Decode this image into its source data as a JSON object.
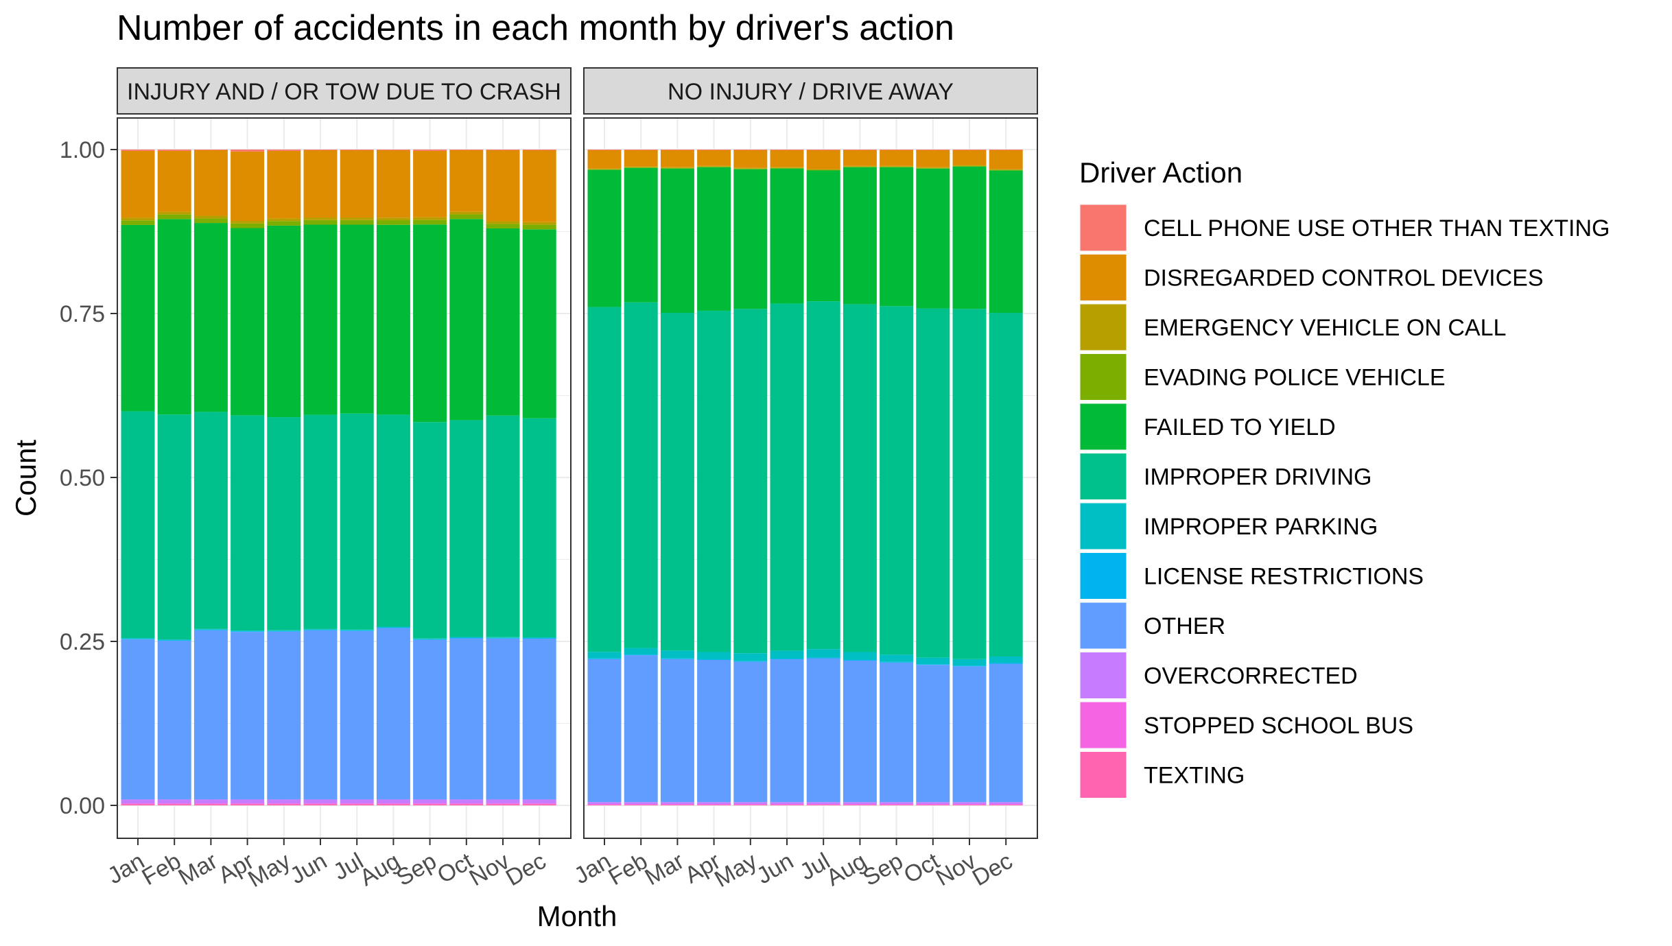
{
  "chart_data": {
    "type": "bar",
    "stacked": "fill",
    "title": "Number of accidents in each month by driver's action",
    "xlabel": "Month",
    "ylabel": "Count",
    "ylim": [
      0,
      1
    ],
    "yticks": [
      "0.00",
      "0.25",
      "0.50",
      "0.75",
      "1.00"
    ],
    "ytick_values": [
      0,
      0.25,
      0.5,
      0.75,
      1.0
    ],
    "categories": [
      "Jan",
      "Feb",
      "Mar",
      "Apr",
      "May",
      "Jun",
      "Jul",
      "Aug",
      "Sep",
      "Oct",
      "Nov",
      "Dec"
    ],
    "grid": true,
    "legend_position": "right",
    "legend": {
      "title": "Driver Action",
      "entries": [
        {
          "name": "CELL PHONE USE OTHER THAN TEXTING",
          "color": "#F8766D"
        },
        {
          "name": "DISREGARDED CONTROL DEVICES",
          "color": "#DE8C00"
        },
        {
          "name": "EMERGENCY VEHICLE ON CALL",
          "color": "#B79F00"
        },
        {
          "name": "EVADING POLICE VEHICLE",
          "color": "#7CAE00"
        },
        {
          "name": "FAILED TO YIELD",
          "color": "#00BA38"
        },
        {
          "name": "IMPROPER DRIVING",
          "color": "#00C08B"
        },
        {
          "name": "IMPROPER PARKING",
          "color": "#00BFC4"
        },
        {
          "name": "LICENSE RESTRICTIONS",
          "color": "#00B4F0"
        },
        {
          "name": "OTHER",
          "color": "#619CFF"
        },
        {
          "name": "OVERCORRECTED",
          "color": "#C77CFF"
        },
        {
          "name": "STOPPED SCHOOL BUS",
          "color": "#F564E3"
        },
        {
          "name": "TEXTING",
          "color": "#FF64B0"
        }
      ]
    },
    "panels": [
      {
        "strip": "INJURY AND / OR TOW DUE TO CRASH",
        "series": [
          {
            "name": "TEXTING",
            "values": [
              0.002,
              0.002,
              0.002,
              0.002,
              0.002,
              0.002,
              0.002,
              0.002,
              0.002,
              0.002,
              0.002,
              0.002
            ]
          },
          {
            "name": "STOPPED SCHOOL BUS",
            "values": [
              0.001,
              0.001,
              0.001,
              0.001,
              0.001,
              0.001,
              0.001,
              0.001,
              0.001,
              0.001,
              0.001,
              0.001
            ]
          },
          {
            "name": "OVERCORRECTED",
            "values": [
              0.006,
              0.006,
              0.006,
              0.006,
              0.006,
              0.006,
              0.006,
              0.006,
              0.006,
              0.006,
              0.006,
              0.006
            ]
          },
          {
            "name": "OTHER",
            "values": [
              0.244,
              0.242,
              0.258,
              0.256,
              0.256,
              0.259,
              0.258,
              0.262,
              0.245,
              0.246,
              0.247,
              0.246
            ]
          },
          {
            "name": "LICENSE RESTRICTIONS",
            "values": [
              0.001,
              0.001,
              0.001,
              0.001,
              0.001,
              0.001,
              0.001,
              0.001,
              0.001,
              0.001,
              0.001,
              0.001
            ]
          },
          {
            "name": "IMPROPER PARKING",
            "values": [
              0.001,
              0.001,
              0.001,
              0.001,
              0.001,
              0.001,
              0.001,
              0.001,
              0.001,
              0.001,
              0.001,
              0.001
            ]
          },
          {
            "name": "IMPROPER DRIVING",
            "values": [
              0.346,
              0.343,
              0.331,
              0.329,
              0.325,
              0.328,
              0.331,
              0.324,
              0.332,
              0.331,
              0.34,
              0.335
            ]
          },
          {
            "name": "FAILED TO YIELD",
            "values": [
              0.284,
              0.298,
              0.288,
              0.286,
              0.292,
              0.291,
              0.289,
              0.29,
              0.303,
              0.307,
              0.287,
              0.289
            ]
          },
          {
            "name": "EVADING POLICE VEHICLE",
            "values": [
              0.007,
              0.007,
              0.007,
              0.007,
              0.007,
              0.007,
              0.007,
              0.007,
              0.007,
              0.007,
              0.007,
              0.007
            ]
          },
          {
            "name": "EMERGENCY VEHICLE ON CALL",
            "values": [
              0.004,
              0.004,
              0.004,
              0.004,
              0.004,
              0.004,
              0.004,
              0.004,
              0.004,
              0.004,
              0.004,
              0.004
            ]
          },
          {
            "name": "DISREGARDED CONTROL DEVICES",
            "values": [
              0.102,
              0.093,
              0.1,
              0.106,
              0.103,
              0.103,
              0.103,
              0.103,
              0.102,
              0.094,
              0.109,
              0.11
            ]
          },
          {
            "name": "CELL PHONE USE OTHER THAN TEXTING",
            "values": [
              0.002,
              0.002,
              0.001,
              0.003,
              0.002,
              0.001,
              0.001,
              0.001,
              0.002,
              0.001,
              0.001,
              0.001
            ]
          }
        ]
      },
      {
        "strip": "NO INJURY / DRIVE AWAY",
        "series": [
          {
            "name": "TEXTING",
            "values": [
              0.001,
              0.001,
              0.001,
              0.001,
              0.001,
              0.001,
              0.001,
              0.001,
              0.001,
              0.001,
              0.001,
              0.001
            ]
          },
          {
            "name": "STOPPED SCHOOL BUS",
            "values": [
              0.001,
              0.001,
              0.001,
              0.001,
              0.001,
              0.001,
              0.001,
              0.001,
              0.001,
              0.001,
              0.001,
              0.001
            ]
          },
          {
            "name": "OVERCORRECTED",
            "values": [
              0.003,
              0.003,
              0.003,
              0.003,
              0.003,
              0.003,
              0.003,
              0.003,
              0.003,
              0.003,
              0.003,
              0.003
            ]
          },
          {
            "name": "OTHER",
            "values": [
              0.218,
              0.224,
              0.218,
              0.217,
              0.214,
              0.218,
              0.22,
              0.216,
              0.213,
              0.209,
              0.207,
              0.211
            ]
          },
          {
            "name": "LICENSE RESTRICTIONS",
            "values": [
              0.001,
              0.001,
              0.001,
              0.001,
              0.001,
              0.001,
              0.001,
              0.001,
              0.001,
              0.001,
              0.001,
              0.001
            ]
          },
          {
            "name": "IMPROPER PARKING",
            "values": [
              0.01,
              0.01,
              0.012,
              0.011,
              0.012,
              0.012,
              0.013,
              0.012,
              0.011,
              0.01,
              0.01,
              0.01
            ]
          },
          {
            "name": "IMPROPER DRIVING",
            "values": [
              0.526,
              0.527,
              0.515,
              0.521,
              0.525,
              0.53,
              0.532,
              0.531,
              0.532,
              0.532,
              0.534,
              0.524
            ]
          },
          {
            "name": "FAILED TO YIELD",
            "values": [
              0.209,
              0.205,
              0.22,
              0.219,
              0.213,
              0.206,
              0.2,
              0.209,
              0.212,
              0.213,
              0.217,
              0.217
            ]
          },
          {
            "name": "EVADING POLICE VEHICLE",
            "values": [
              0.001,
              0.001,
              0.001,
              0.001,
              0.001,
              0.001,
              0.001,
              0.001,
              0.001,
              0.001,
              0.001,
              0.001
            ]
          },
          {
            "name": "EMERGENCY VEHICLE ON CALL",
            "values": [
              0.001,
              0.001,
              0.001,
              0.001,
              0.001,
              0.001,
              0.001,
              0.001,
              0.001,
              0.001,
              0.001,
              0.001
            ]
          },
          {
            "name": "DISREGARDED CONTROL DEVICES",
            "values": [
              0.028,
              0.025,
              0.026,
              0.024,
              0.027,
              0.026,
              0.029,
              0.024,
              0.024,
              0.026,
              0.023,
              0.029
            ]
          },
          {
            "name": "CELL PHONE USE OTHER THAN TEXTING",
            "values": [
              0.001,
              0.001,
              0.001,
              0.001,
              0.001,
              0.001,
              0.001,
              0.001,
              0.001,
              0.001,
              0.001,
              0.001
            ]
          }
        ]
      }
    ]
  }
}
